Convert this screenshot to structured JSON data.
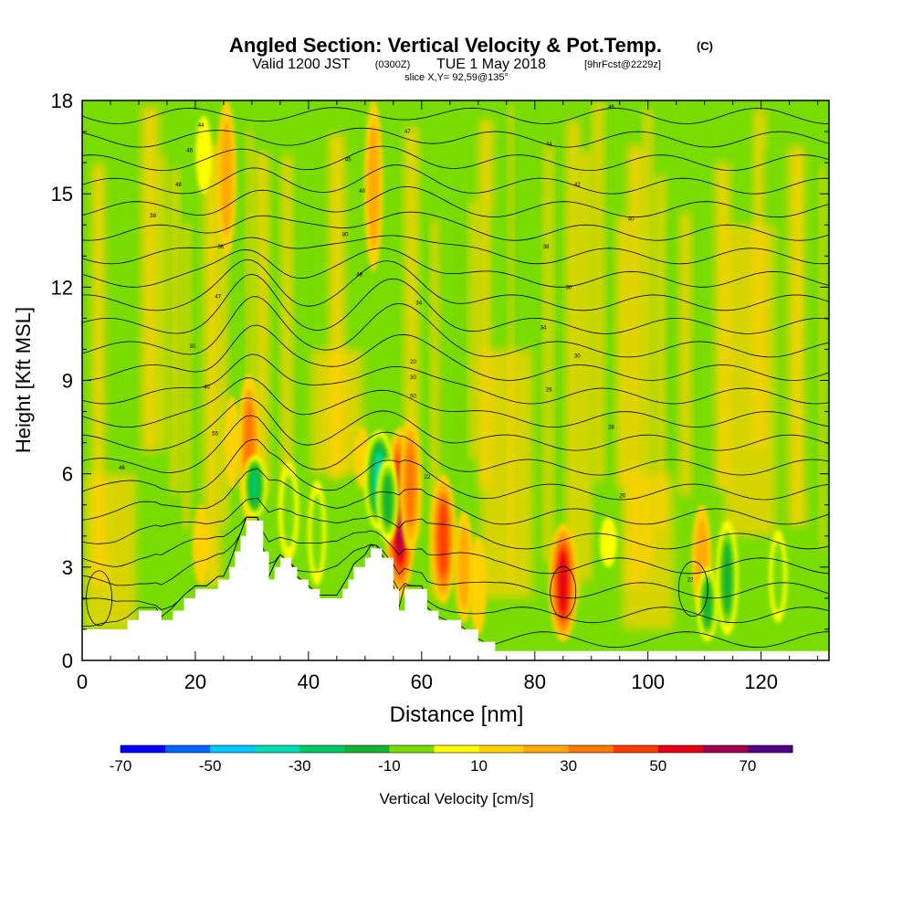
{
  "header": {
    "title": "Angled Section: Vertical Velocity & Pot.Temp.",
    "title_unit": "(C)",
    "valid_prefix": "Valid 1200 JST",
    "valid_utc": "(0300Z)",
    "valid_date": "TUE 1 May 2018",
    "forecast": "[9hrFcst@2229z]",
    "slice": "slice X,Y= 92,59@135°"
  },
  "chart_data": {
    "type": "heatmap",
    "xlabel": "Distance [nm]",
    "ylabel": "Height [Kft MSL]",
    "xlim": [
      0,
      132
    ],
    "ylim": [
      0,
      18
    ],
    "x_ticks": [
      "0",
      "20",
      "40",
      "60",
      "80",
      "100",
      "120"
    ],
    "y_ticks": [
      "0",
      "3",
      "6",
      "9",
      "12",
      "15",
      "18"
    ],
    "colorbar": {
      "label": "Vertical Velocity [cm/s]",
      "ticks": [
        "-70",
        "-50",
        "-30",
        "-10",
        "10",
        "30",
        "50",
        "70"
      ],
      "bins": [
        -80,
        -70,
        -60,
        -50,
        -40,
        -30,
        -20,
        -10,
        10,
        20,
        30,
        40,
        50,
        60,
        70,
        80
      ],
      "colors": [
        "#0000ff",
        "#0064ff",
        "#00c8ff",
        "#00dcb4",
        "#00c864",
        "#14b432",
        "#78dc00",
        "#ffff00",
        "#ffd200",
        "#ffaa00",
        "#ff7800",
        "#ff3c00",
        "#e60014",
        "#a00050",
        "#500082"
      ]
    },
    "terrain_kft": [
      [
        0,
        1.0
      ],
      [
        6,
        1.0
      ],
      [
        8,
        1.3
      ],
      [
        10,
        1.6
      ],
      [
        13,
        1.6
      ],
      [
        14,
        1.3
      ],
      [
        16,
        1.6
      ],
      [
        18,
        2.0
      ],
      [
        20,
        2.3
      ],
      [
        22,
        2.3
      ],
      [
        24,
        2.6
      ],
      [
        25,
        2.6
      ],
      [
        26,
        3.0
      ],
      [
        27,
        3.5
      ],
      [
        28,
        4.0
      ],
      [
        29,
        4.5
      ],
      [
        31,
        4.5
      ],
      [
        32,
        3.5
      ],
      [
        33,
        2.6
      ],
      [
        34,
        3.0
      ],
      [
        35,
        3.3
      ],
      [
        37,
        3.0
      ],
      [
        38,
        2.6
      ],
      [
        40,
        2.3
      ],
      [
        42,
        2.0
      ],
      [
        45,
        2.0
      ],
      [
        46,
        2.3
      ],
      [
        47,
        2.6
      ],
      [
        48,
        3.0
      ],
      [
        50,
        3.3
      ],
      [
        51,
        3.6
      ],
      [
        52,
        3.6
      ],
      [
        53,
        3.3
      ],
      [
        55,
        2.3
      ],
      [
        56,
        1.6
      ],
      [
        57,
        2.3
      ],
      [
        60,
        2.3
      ],
      [
        61,
        1.6
      ],
      [
        63,
        1.3
      ],
      [
        67,
        1.0
      ],
      [
        70,
        0.6
      ],
      [
        73,
        0.3
      ],
      [
        132,
        0.3
      ]
    ],
    "updrafts": [
      {
        "x": 25.5,
        "y0": 13,
        "y1": 18,
        "w": 27
      },
      {
        "x": 29.5,
        "y0": 4.5,
        "y1": 9.2,
        "w": 36
      },
      {
        "x": 26.5,
        "y0": 5.5,
        "y1": 8.5,
        "w": 14
      },
      {
        "x": 51.5,
        "y0": 12.5,
        "y1": 18,
        "w": 24
      },
      {
        "x": 56.2,
        "y0": 2.0,
        "y1": 7.5,
        "w": 62
      },
      {
        "x": 58.0,
        "y0": 3.5,
        "y1": 7.8,
        "w": 34
      },
      {
        "x": 63.8,
        "y0": 1.8,
        "y1": 6.0,
        "w": 46
      },
      {
        "x": 67.5,
        "y0": 1.2,
        "y1": 4.8,
        "w": 26
      },
      {
        "x": 70.0,
        "y0": 0.8,
        "y1": 4.0,
        "w": 18
      },
      {
        "x": 85.0,
        "y0": 0.6,
        "y1": 4.4,
        "w": 55
      },
      {
        "x": 109.5,
        "y0": 1.5,
        "y1": 5.0,
        "w": 28
      },
      {
        "x": 21.0,
        "y0": 2.4,
        "y1": 5.0,
        "w": 18
      },
      {
        "x": 49.5,
        "y0": 5.5,
        "y1": 7.5,
        "w": 14
      }
    ],
    "downdrafts": [
      {
        "x": 30.5,
        "y0": 4.6,
        "y1": 6.6,
        "w": -40
      },
      {
        "x": 52.5,
        "y0": 4.2,
        "y1": 7.4,
        "w": -58
      },
      {
        "x": 54.0,
        "y0": 3.8,
        "y1": 6.5,
        "w": -35
      },
      {
        "x": 36.5,
        "y0": 3.2,
        "y1": 6.4,
        "w": -28
      },
      {
        "x": 41.5,
        "y0": 2.4,
        "y1": 5.8,
        "w": -22
      },
      {
        "x": 114.0,
        "y0": 0.8,
        "y1": 4.5,
        "w": -34
      },
      {
        "x": 110.5,
        "y0": 0.6,
        "y1": 3.0,
        "w": -30
      },
      {
        "x": 21.5,
        "y0": 15,
        "y1": 17.5,
        "w": -15
      },
      {
        "x": 93.0,
        "y0": 3.0,
        "y1": 4.6,
        "w": -18
      },
      {
        "x": 123.0,
        "y0": 1.2,
        "y1": 4.2,
        "w": -22
      }
    ],
    "isentrope_labels": [
      {
        "x": 21,
        "y": 17.2,
        "text": "44"
      },
      {
        "x": 19,
        "y": 16.4,
        "text": "46"
      },
      {
        "x": 17,
        "y": 15.3,
        "text": "48"
      },
      {
        "x": 12.5,
        "y": 14.3,
        "text": "38"
      },
      {
        "x": 24.5,
        "y": 13.3,
        "text": "36"
      },
      {
        "x": 24,
        "y": 11.7,
        "text": "47"
      },
      {
        "x": 19.5,
        "y": 10.1,
        "text": "30"
      },
      {
        "x": 22,
        "y": 8.8,
        "text": "40"
      },
      {
        "x": 23.5,
        "y": 7.3,
        "text": "55"
      },
      {
        "x": 7,
        "y": 6.2,
        "text": "46"
      },
      {
        "x": 47,
        "y": 16.1,
        "text": "45"
      },
      {
        "x": 49.5,
        "y": 15.1,
        "text": "40"
      },
      {
        "x": 46.5,
        "y": 13.7,
        "text": "80"
      },
      {
        "x": 49,
        "y": 12.4,
        "text": "48"
      },
      {
        "x": 57.5,
        "y": 17.0,
        "text": "47"
      },
      {
        "x": 59.5,
        "y": 11.5,
        "text": "34"
      },
      {
        "x": 58.5,
        "y": 9.6,
        "text": "20"
      },
      {
        "x": 58.5,
        "y": 9.1,
        "text": "30"
      },
      {
        "x": 58.5,
        "y": 8.5,
        "text": "50"
      },
      {
        "x": 61,
        "y": 5.9,
        "text": "22"
      },
      {
        "x": 93.5,
        "y": 17.8,
        "text": "46"
      },
      {
        "x": 82.5,
        "y": 16.6,
        "text": "44"
      },
      {
        "x": 87.5,
        "y": 15.3,
        "text": "42"
      },
      {
        "x": 97,
        "y": 14.2,
        "text": "40"
      },
      {
        "x": 82,
        "y": 13.3,
        "text": "38"
      },
      {
        "x": 86,
        "y": 12.0,
        "text": "36"
      },
      {
        "x": 81.5,
        "y": 10.7,
        "text": "34"
      },
      {
        "x": 87.5,
        "y": 9.8,
        "text": "30"
      },
      {
        "x": 82.5,
        "y": 8.7,
        "text": "26"
      },
      {
        "x": 93.5,
        "y": 7.5,
        "text": "28"
      },
      {
        "x": 95.5,
        "y": 5.3,
        "text": "20"
      },
      {
        "x": 107.5,
        "y": 2.6,
        "text": "22"
      }
    ]
  }
}
